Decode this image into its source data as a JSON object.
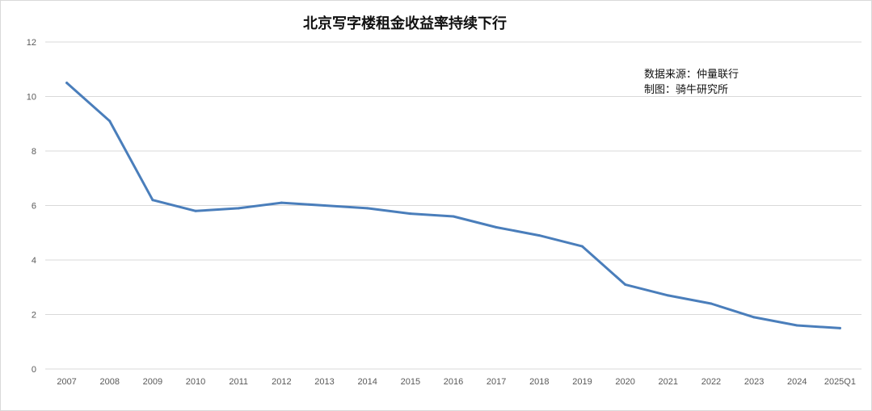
{
  "chart_data": {
    "type": "line",
    "title": "北京写字楼租金收益率持续下行",
    "xlabel": "",
    "ylabel": "",
    "categories": [
      "2007",
      "2008",
      "2009",
      "2010",
      "2011",
      "2012",
      "2013",
      "2014",
      "2015",
      "2016",
      "2017",
      "2018",
      "2019",
      "2020",
      "2021",
      "2022",
      "2023",
      "2024",
      "2025Q1"
    ],
    "series": [
      {
        "values": [
          10.5,
          9.1,
          6.2,
          5.8,
          5.9,
          6.1,
          6.0,
          5.9,
          5.7,
          5.6,
          5.2,
          4.9,
          4.5,
          3.1,
          2.7,
          2.4,
          1.9,
          1.6,
          1.5
        ],
        "color": "#4a7ebb"
      }
    ],
    "ylim": [
      0,
      12
    ],
    "yticks": [
      0,
      2,
      4,
      6,
      8,
      10,
      12
    ],
    "grid": true,
    "legend": "none",
    "annotations": [
      "数据来源：仲量联行",
      "制图：骑牛研究所"
    ]
  },
  "colors": {
    "line": "#4a7ebb",
    "grid": "#d9d9d9",
    "tick_text": "#595959"
  }
}
